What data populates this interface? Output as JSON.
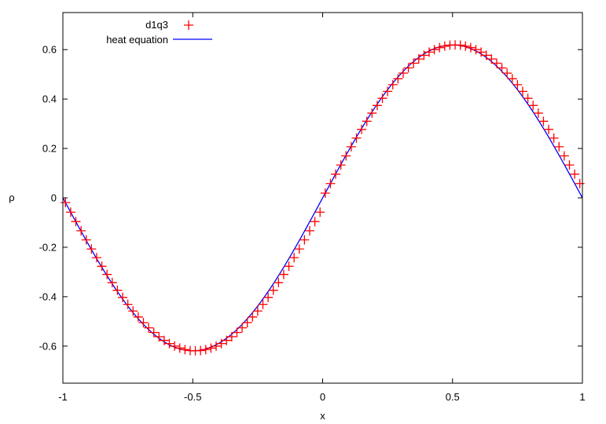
{
  "chart_data": {
    "type": "line",
    "title": "",
    "xlabel": "x",
    "ylabel": "ρ",
    "xlim": [
      -1,
      1
    ],
    "ylim": [
      -0.75,
      0.75
    ],
    "x_ticks": [
      "-1",
      "-0.5",
      "0",
      "0.5",
      "1"
    ],
    "y_ticks": [
      "-0.6",
      "-0.4",
      "-0.2",
      "0",
      "0.2",
      "0.4",
      "0.6"
    ],
    "grid": false,
    "legend_position": "top-left",
    "series": [
      {
        "name": "d1q3",
        "style": "points",
        "marker": "plus",
        "color": "#ff0000",
        "x": [
          -0.99,
          -0.97,
          -0.95,
          -0.93,
          -0.91,
          -0.89,
          -0.87,
          -0.85,
          -0.83,
          -0.81,
          -0.79,
          -0.77,
          -0.75,
          -0.73,
          -0.71,
          -0.69,
          -0.67,
          -0.65,
          -0.63,
          -0.61,
          -0.59,
          -0.57,
          -0.55,
          -0.53,
          -0.51,
          -0.49,
          -0.47,
          -0.45,
          -0.43,
          -0.41,
          -0.39,
          -0.37,
          -0.35,
          -0.33,
          -0.31,
          -0.29,
          -0.27,
          -0.25,
          -0.23,
          -0.21,
          -0.19,
          -0.17,
          -0.15,
          -0.13,
          -0.11,
          -0.09,
          -0.07,
          -0.05,
          -0.03,
          -0.01,
          0.01,
          0.03,
          0.05,
          0.07,
          0.09,
          0.11,
          0.13,
          0.15,
          0.17,
          0.19,
          0.21,
          0.23,
          0.25,
          0.27,
          0.29,
          0.31,
          0.33,
          0.35,
          0.37,
          0.39,
          0.41,
          0.43,
          0.45,
          0.47,
          0.49,
          0.51,
          0.53,
          0.55,
          0.57,
          0.59,
          0.61,
          0.63,
          0.65,
          0.67,
          0.69,
          0.71,
          0.73,
          0.75,
          0.77,
          0.79,
          0.81,
          0.83,
          0.85,
          0.87,
          0.89,
          0.91,
          0.93,
          0.95,
          0.97,
          0.99
        ],
        "y": [
          -0.019,
          -0.058,
          -0.096,
          -0.133,
          -0.17,
          -0.207,
          -0.242,
          -0.277,
          -0.31,
          -0.343,
          -0.374,
          -0.403,
          -0.431,
          -0.458,
          -0.482,
          -0.505,
          -0.526,
          -0.545,
          -0.562,
          -0.577,
          -0.59,
          -0.6,
          -0.608,
          -0.614,
          -0.618,
          -0.619,
          -0.618,
          -0.614,
          -0.608,
          -0.6,
          -0.59,
          -0.577,
          -0.562,
          -0.545,
          -0.526,
          -0.505,
          -0.482,
          -0.458,
          -0.431,
          -0.403,
          -0.374,
          -0.343,
          -0.31,
          -0.277,
          -0.242,
          -0.207,
          -0.17,
          -0.133,
          -0.096,
          -0.058,
          0.019,
          0.058,
          0.096,
          0.133,
          0.17,
          0.207,
          0.242,
          0.277,
          0.31,
          0.343,
          0.374,
          0.403,
          0.431,
          0.458,
          0.482,
          0.505,
          0.526,
          0.545,
          0.562,
          0.577,
          0.59,
          0.6,
          0.608,
          0.614,
          0.618,
          0.619,
          0.618,
          0.614,
          0.608,
          0.6,
          0.59,
          0.577,
          0.562,
          0.545,
          0.526,
          0.505,
          0.482,
          0.458,
          0.431,
          0.403,
          0.374,
          0.343,
          0.31,
          0.277,
          0.242,
          0.207,
          0.17,
          0.133,
          0.096,
          0.058
        ]
      },
      {
        "name": "heat equation",
        "style": "line",
        "color": "#0000ff",
        "function": "0.619*sin(pi*x)"
      }
    ]
  },
  "colors": {
    "points": "#ff0000",
    "line": "#0000ff",
    "axes": "#000000"
  }
}
